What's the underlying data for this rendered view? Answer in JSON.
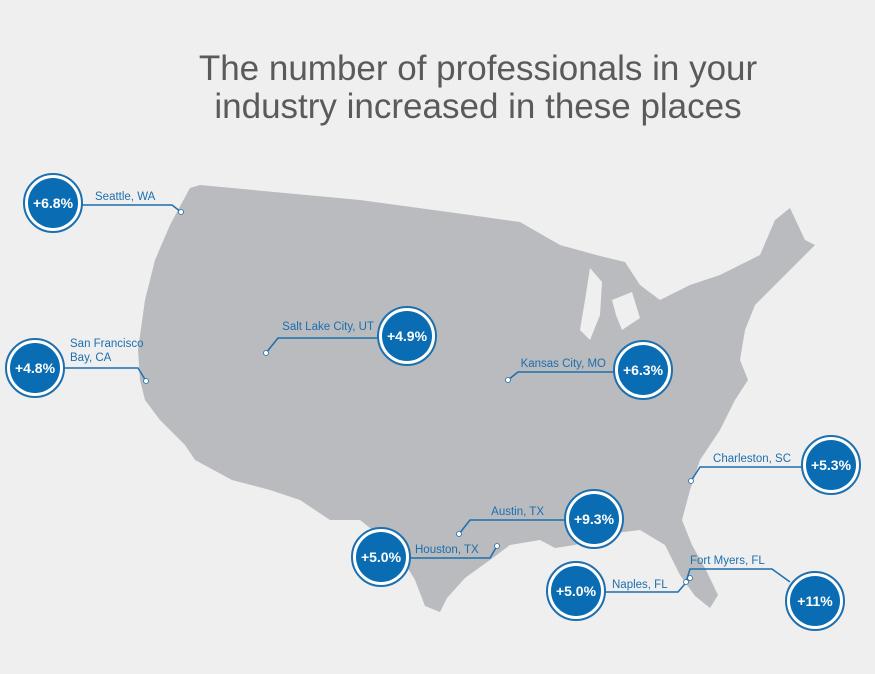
{
  "header": {
    "title": [
      "The number of professionals in your",
      "industry increased in these places"
    ]
  },
  "markers": [
    {
      "city": [
        "Seattle, WA"
      ],
      "change": "+6.8%"
    },
    {
      "city": [
        "San Francisco",
        "Bay, CA"
      ],
      "change": "+4.8%"
    },
    {
      "city": [
        "Salt Lake City, UT"
      ],
      "change": "+4.9%"
    },
    {
      "city": [
        "Kansas City, MO"
      ],
      "change": "+6.3%"
    },
    {
      "city": [
        "Charleston, SC"
      ],
      "change": "+5.3%"
    },
    {
      "city": [
        "Austin, TX"
      ],
      "change": "+9.3%"
    },
    {
      "city": [
        "Houston, TX"
      ],
      "change": "+5.0%"
    },
    {
      "city": [
        "Naples, FL"
      ],
      "change": "+5.0%"
    },
    {
      "city": [
        "Fort Myers, FL"
      ],
      "change": "+11%"
    }
  ]
}
